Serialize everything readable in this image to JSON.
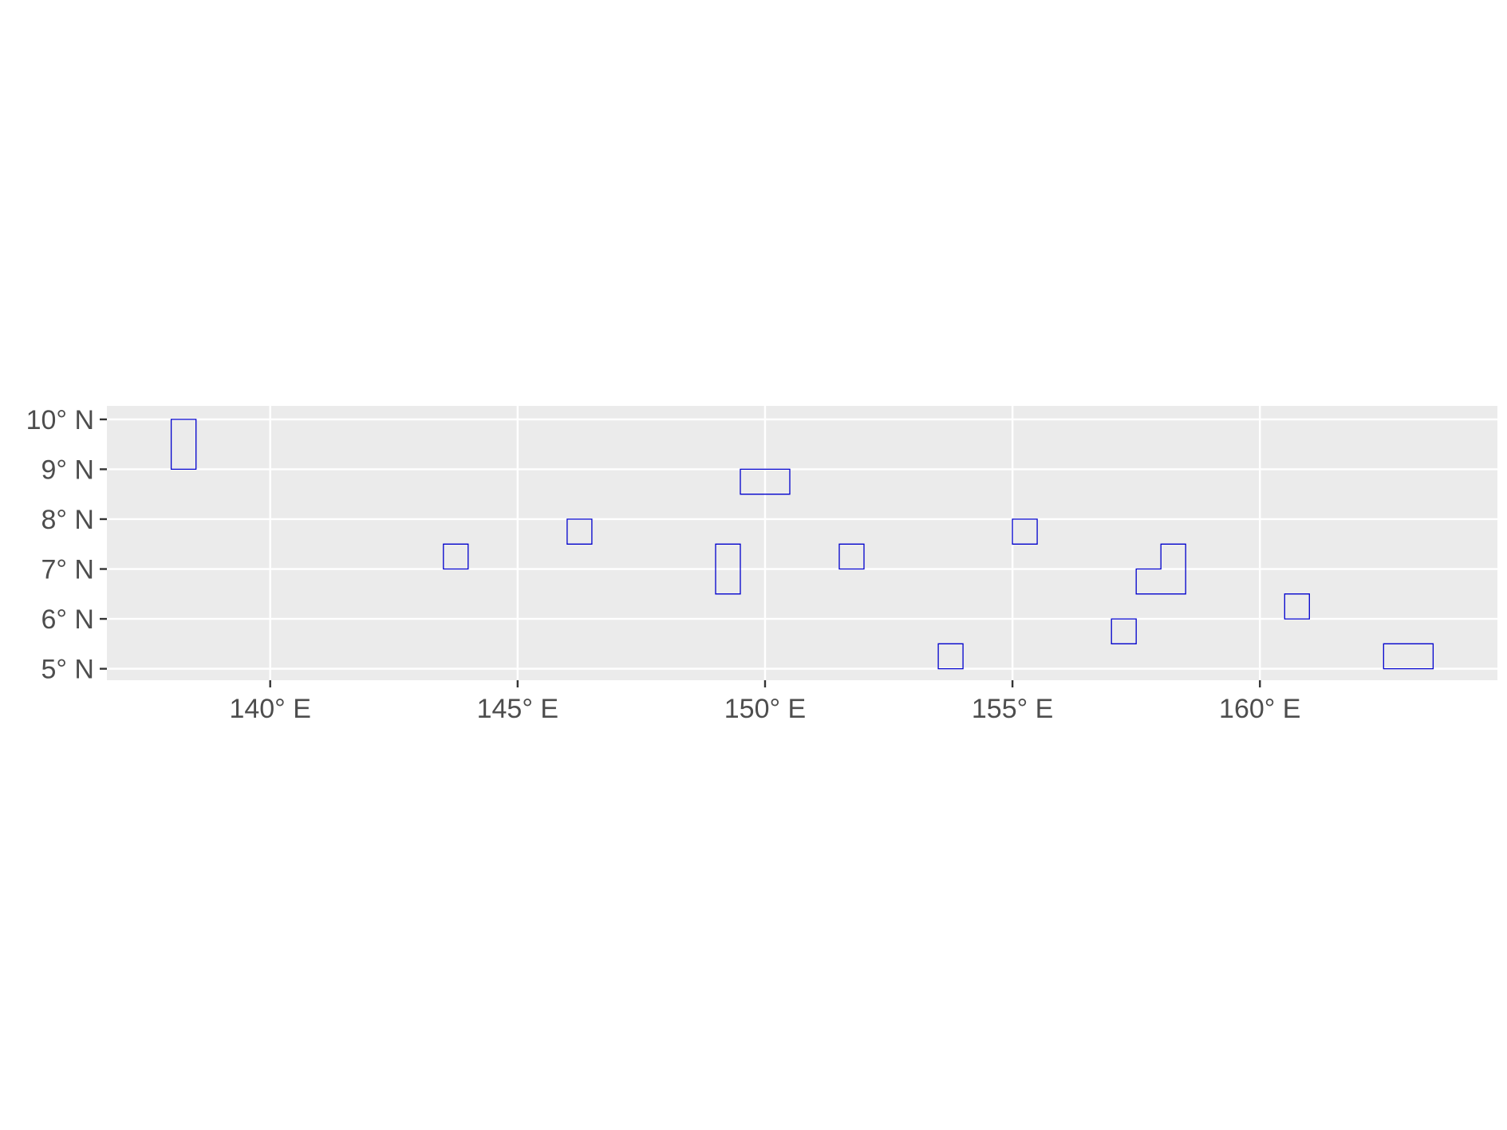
{
  "chart_data": {
    "type": "map",
    "coordinate_system": "longitude / latitude",
    "panel_background": "#ebebeb",
    "grid": true,
    "outline_color": "#0000cc",
    "xlim": [
      136.7,
      164.8
    ],
    "ylim": [
      4.77,
      10.27
    ],
    "x_ticks": [
      {
        "value": 140,
        "label": "140° E"
      },
      {
        "value": 145,
        "label": "145° E"
      },
      {
        "value": 150,
        "label": "150° E"
      },
      {
        "value": 155,
        "label": "155° E"
      },
      {
        "value": 160,
        "label": "160° E"
      }
    ],
    "y_ticks": [
      {
        "value": 5,
        "label": "5° N"
      },
      {
        "value": 6,
        "label": "6° N"
      },
      {
        "value": 7,
        "label": "7° N"
      },
      {
        "value": 8,
        "label": "8° N"
      },
      {
        "value": 9,
        "label": "9° N"
      },
      {
        "value": 10,
        "label": "10° N"
      }
    ],
    "polygons": [
      {
        "lon_min": 138.0,
        "lon_max": 138.5,
        "lat_min": 9.0,
        "lat_max": 10.0
      },
      {
        "lon_min": 143.5,
        "lon_max": 144.0,
        "lat_min": 7.0,
        "lat_max": 7.5
      },
      {
        "lon_min": 146.0,
        "lon_max": 146.5,
        "lat_min": 7.5,
        "lat_max": 8.0
      },
      {
        "lon_min": 149.5,
        "lon_max": 150.5,
        "lat_min": 8.5,
        "lat_max": 9.0
      },
      {
        "lon_min": 149.0,
        "lon_max": 149.5,
        "lat_min": 6.5,
        "lat_max": 7.5
      },
      {
        "lon_min": 151.5,
        "lon_max": 152.0,
        "lat_min": 7.0,
        "lat_max": 7.5
      },
      {
        "lon_min": 153.5,
        "lon_max": 154.0,
        "lat_min": 5.0,
        "lat_max": 5.5
      },
      {
        "lon_min": 155.0,
        "lon_max": 155.5,
        "lat_min": 7.5,
        "lat_max": 8.0
      },
      {
        "lon_min": 157.0,
        "lon_max": 157.5,
        "lat_min": 5.5,
        "lat_max": 6.0
      },
      {
        "points": [
          [
            157.5,
            6.5
          ],
          [
            158.5,
            6.5
          ],
          [
            158.5,
            7.5
          ],
          [
            158.0,
            7.5
          ],
          [
            158.0,
            7.0
          ],
          [
            157.5,
            7.0
          ]
        ]
      },
      {
        "lon_min": 160.5,
        "lon_max": 161.0,
        "lat_min": 6.0,
        "lat_max": 6.5
      },
      {
        "lon_min": 162.5,
        "lon_max": 163.5,
        "lat_min": 5.0,
        "lat_max": 5.5
      }
    ]
  }
}
